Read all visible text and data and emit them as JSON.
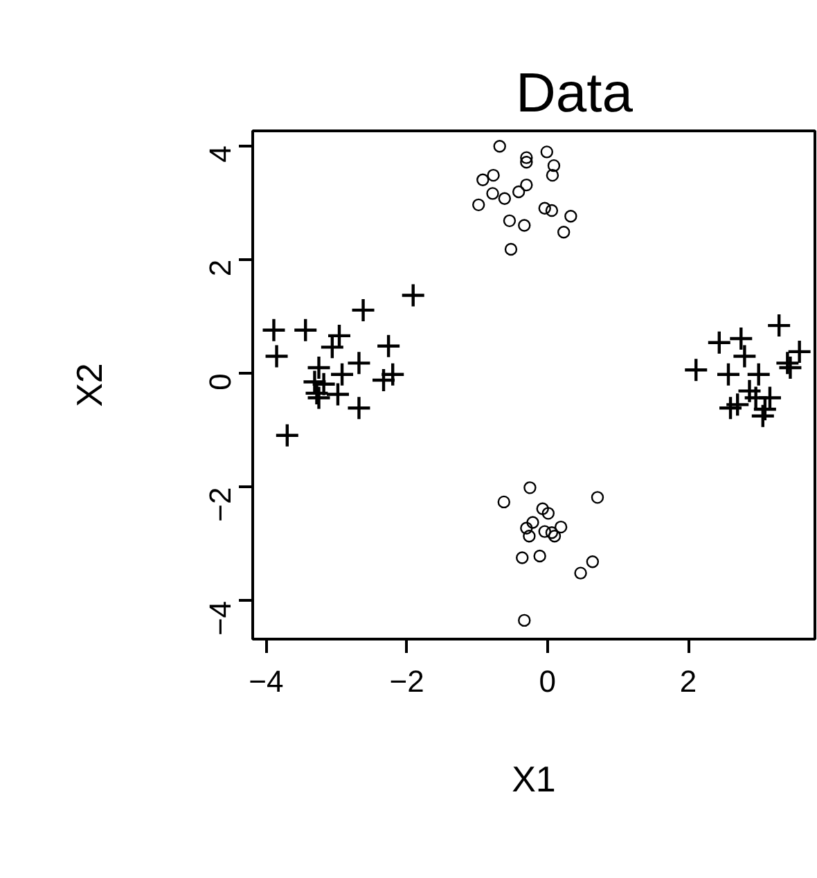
{
  "chart_data": {
    "type": "scatter",
    "title": "Data",
    "xlabel": "X1",
    "ylabel": "X2",
    "xlim": [
      -4.19,
      3.8
    ],
    "ylim": [
      -4.67,
      4.26
    ],
    "xticks": [
      {
        "value": -4,
        "label": "−4"
      },
      {
        "value": -2,
        "label": "−2"
      },
      0,
      2
    ],
    "yticks": [
      {
        "value": -4,
        "label": "−4"
      },
      {
        "value": -2,
        "label": "−2"
      },
      0,
      2,
      4
    ],
    "grid": false,
    "series": [
      {
        "color": "#000000",
        "marker": "circle",
        "x": [
          -0.68,
          -0.3,
          -0.3,
          -0.01,
          0.09,
          0.07,
          -0.77,
          -0.92,
          -0.78,
          -0.61,
          -0.41,
          -0.3,
          -0.98,
          -0.04,
          0.06,
          0.33,
          -0.54,
          -0.33,
          0.23,
          -0.52,
          -0.25,
          -0.62,
          0.71,
          -0.07,
          0.01,
          -0.21,
          -0.3,
          0.19,
          -0.26,
          -0.04,
          0.06,
          0.1,
          -0.36,
          -0.11,
          0.64,
          0.47,
          -0.33
        ],
        "values": [
          3.99,
          3.79,
          3.71,
          3.89,
          3.65,
          3.48,
          3.48,
          3.4,
          3.16,
          3.07,
          3.19,
          3.31,
          2.96,
          2.9,
          2.86,
          2.76,
          2.68,
          2.6,
          2.48,
          2.18,
          -2.01,
          -2.26,
          -2.18,
          -2.38,
          -2.46,
          -2.62,
          -2.72,
          -2.7,
          -2.86,
          -2.78,
          -2.8,
          -2.86,
          -3.24,
          -3.21,
          -3.31,
          -3.51,
          -4.34
        ]
      },
      {
        "color": "#000000",
        "marker": "cross",
        "x": [
          -3.89,
          -3.44,
          -2.62,
          -1.91,
          -2.96,
          -3.06,
          -2.26,
          -3.85,
          -2.68,
          -3.25,
          -2.92,
          -2.2,
          -2.33,
          -3.31,
          -3.18,
          -3.28,
          -2.98,
          -3.25,
          -2.68,
          -3.7,
          3.29,
          2.44,
          2.75,
          2.8,
          3.58,
          3.41,
          2.11,
          2.57,
          3.0,
          3.45,
          2.87,
          2.7,
          2.96,
          3.16,
          3.09,
          3.06,
          2.6
        ],
        "values": [
          0.76,
          0.76,
          1.11,
          1.37,
          0.66,
          0.46,
          0.48,
          0.3,
          0.18,
          0.1,
          -0.02,
          -0.02,
          -0.12,
          -0.15,
          -0.19,
          -0.35,
          -0.37,
          -0.43,
          -0.61,
          -1.09,
          0.84,
          0.54,
          0.61,
          0.3,
          0.38,
          0.18,
          0.06,
          -0.02,
          -0.02,
          0.1,
          -0.31,
          -0.55,
          -0.43,
          -0.43,
          -0.63,
          -0.75,
          -0.61
        ]
      }
    ]
  }
}
